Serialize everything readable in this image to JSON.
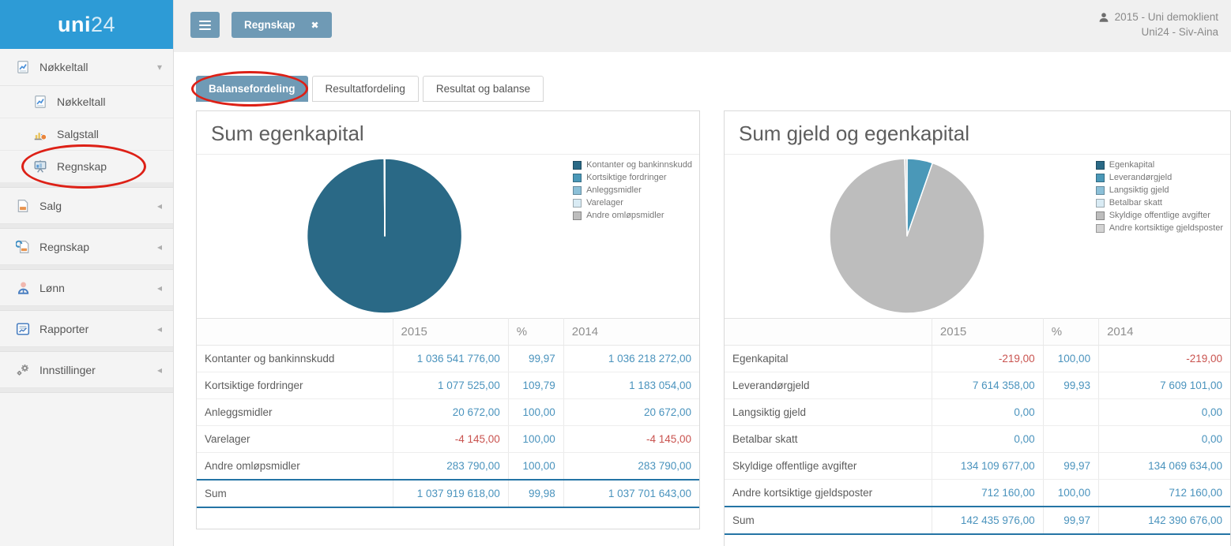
{
  "app": {
    "logo_bold": "uni",
    "logo_light": "24"
  },
  "topbar": {
    "tab_label": "Regnskap",
    "close_icon": "✖",
    "user_line1": "2015 - Uni demoklient",
    "user_line2": "Uni24 - Siv-Aina"
  },
  "sidebar": {
    "group_label": "Nøkkeltall",
    "group_chevron": "▾",
    "collapsed_chevron": "◂",
    "sub": [
      {
        "label": "Nøkkeltall"
      },
      {
        "label": "Salgstall"
      },
      {
        "label": "Regnskap"
      }
    ],
    "main": [
      {
        "label": "Salg"
      },
      {
        "label": "Regnskap"
      },
      {
        "label": "Lønn"
      },
      {
        "label": "Rapporter"
      },
      {
        "label": "Innstillinger"
      }
    ]
  },
  "tabs": [
    {
      "label": "Balansefordeling",
      "active": true
    },
    {
      "label": "Resultatfordeling",
      "active": false
    },
    {
      "label": "Resultat og balanse",
      "active": false
    }
  ],
  "panels": [
    {
      "title": "Sum egenkapital",
      "columns": {
        "c0": "",
        "c1": "2015",
        "c2": "%",
        "c3": "2014"
      },
      "legend": [
        {
          "label": "Kontanter og bankinnskudd",
          "color": "#2a6986"
        },
        {
          "label": "Kortsiktige fordringer",
          "color": "#4a98b8"
        },
        {
          "label": "Anleggsmidler",
          "color": "#8cc0d8"
        },
        {
          "label": "Varelager",
          "color": "#d9ebf4"
        },
        {
          "label": "Andre omløpsmidler",
          "color": "#bdbdbd"
        }
      ],
      "rows": [
        {
          "label": "Kontanter og bankinnskudd",
          "y2015": "1 036 541 776,00",
          "pct": "99,97",
          "y2014": "1 036 218 272,00"
        },
        {
          "label": "Kortsiktige fordringer",
          "y2015": "1 077 525,00",
          "pct": "109,79",
          "y2014": "1 183 054,00"
        },
        {
          "label": "Anleggsmidler",
          "y2015": "20 672,00",
          "pct": "100,00",
          "y2014": "20 672,00"
        },
        {
          "label": "Varelager",
          "y2015": "-4 145,00",
          "pct": "100,00",
          "y2014": "-4 145,00"
        },
        {
          "label": "Andre omløpsmidler",
          "y2015": "283 790,00",
          "pct": "100,00",
          "y2014": "283 790,00"
        }
      ],
      "sum": {
        "label": "Sum",
        "y2015": "1 037 919 618,00",
        "pct": "99,98",
        "y2014": "1 037 701 643,00"
      }
    },
    {
      "title": "Sum gjeld og egenkapital",
      "columns": {
        "c0": "",
        "c1": "2015",
        "c2": "%",
        "c3": "2014"
      },
      "legend": [
        {
          "label": "Egenkapital",
          "color": "#2a6986"
        },
        {
          "label": "Leverandørgjeld",
          "color": "#4a98b8"
        },
        {
          "label": "Langsiktig gjeld",
          "color": "#8cc0d8"
        },
        {
          "label": "Betalbar skatt",
          "color": "#d9ebf4"
        },
        {
          "label": "Skyldige offentlige avgifter",
          "color": "#bdbdbd"
        },
        {
          "label": "Andre kortsiktige gjeldsposter",
          "color": "#d3d3d3"
        }
      ],
      "rows": [
        {
          "label": "Egenkapital",
          "y2015": "-219,00",
          "pct": "100,00",
          "y2014": "-219,00"
        },
        {
          "label": "Leverandørgjeld",
          "y2015": "7 614 358,00",
          "pct": "99,93",
          "y2014": "7 609 101,00"
        },
        {
          "label": "Langsiktig gjeld",
          "y2015": "0,00",
          "pct": "",
          "y2014": "0,00"
        },
        {
          "label": "Betalbar skatt",
          "y2015": "0,00",
          "pct": "",
          "y2014": "0,00"
        },
        {
          "label": "Skyldige offentlige avgifter",
          "y2015": "134 109 677,00",
          "pct": "99,97",
          "y2014": "134 069 634,00"
        },
        {
          "label": "Andre kortsiktige gjeldsposter",
          "y2015": "712 160,00",
          "pct": "100,00",
          "y2014": "712 160,00"
        }
      ],
      "sum": {
        "label": "Sum",
        "y2015": "142 435 976,00",
        "pct": "99,97",
        "y2014": "142 390 676,00"
      }
    }
  ],
  "chart_data": [
    {
      "type": "pie",
      "title": "Sum egenkapital",
      "labels": [
        "Kontanter og bankinnskudd",
        "Kortsiktige fordringer",
        "Anleggsmidler",
        "Varelager",
        "Andre omløpsmidler"
      ],
      "values": [
        1036541776.0,
        1077525.0,
        20672.0,
        -4145.0,
        283790.0
      ],
      "colors": [
        "#2a6986",
        "#4a98b8",
        "#8cc0d8",
        "#d9ebf4",
        "#bdbdbd"
      ],
      "legend_position": "top-right"
    },
    {
      "type": "pie",
      "title": "Sum gjeld og egenkapital",
      "labels": [
        "Egenkapital",
        "Leverandørgjeld",
        "Langsiktig gjeld",
        "Betalbar skatt",
        "Skyldige offentlige avgifter",
        "Andre kortsiktige gjeldsposter"
      ],
      "values": [
        -219.0,
        7614358.0,
        0.0,
        0.0,
        134109677.0,
        712160.0
      ],
      "colors": [
        "#2a6986",
        "#4a98b8",
        "#8cc0d8",
        "#d9ebf4",
        "#bdbdbd",
        "#d3d3d3"
      ],
      "legend_position": "top-right"
    }
  ],
  "colors": {
    "accent_blue": "#6f9ab5",
    "sidebar_header_blue": "#2d9bd6",
    "value_blue": "#4a93bd",
    "negative_red": "#c9534f",
    "sum_border_blue": "#2474a5",
    "annotation_red": "#dd2016"
  }
}
